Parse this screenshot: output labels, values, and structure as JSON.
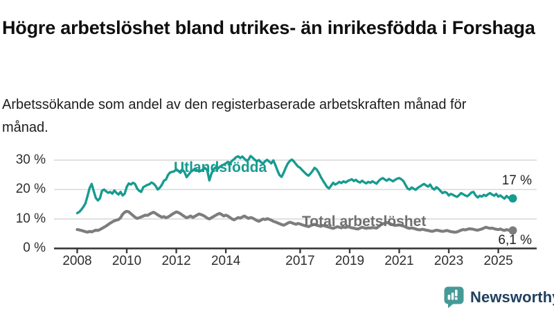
{
  "header": {
    "title": "Högre arbetslöshet bland utrikes- än inrikesfödda i Forshaga",
    "subtitle": "Arbetssökande som andel av den registerbaserade arbetskraften månad för månad."
  },
  "chart_data": {
    "type": "line",
    "title": "Högre arbetslöshet bland utrikes- än inrikesfödda i Forshaga",
    "subtitle": "Arbetssökande som andel av den registerbaserade arbetskraften månad för månad.",
    "unit": "%",
    "x_start": "2008-01",
    "x_end": "2025-08",
    "x_step": "month",
    "xlim": [
      2007.1,
      2026.5
    ],
    "ylim": [
      0,
      33
    ],
    "grid": "horizontal",
    "legend_position": "inline-labels",
    "xtick_years": [
      2008,
      2010,
      2012,
      2014,
      2017,
      2019,
      2021,
      2023,
      2025
    ],
    "xtick_labels": [
      "2008",
      "2010",
      "2012",
      "2014",
      "2017",
      "2019",
      "2021",
      "2023",
      "2025"
    ],
    "yticks": [
      30,
      20,
      10,
      0
    ],
    "ytick_labels": [
      "30 %",
      "20 %",
      "10 %",
      "0 %"
    ],
    "series": [
      {
        "name": "Utlandsfödda",
        "color": "#169b90",
        "end_label": "17 %",
        "end_value": 17.0,
        "values": [
          12.0,
          12.4,
          13.2,
          14.1,
          15.3,
          17.8,
          20.5,
          21.9,
          19.5,
          17.2,
          16.3,
          17.0,
          19.6,
          20.0,
          19.4,
          18.9,
          19.2,
          18.6,
          19.7,
          18.9,
          18.3,
          19.2,
          18.0,
          18.6,
          20.9,
          22.1,
          21.7,
          22.3,
          21.9,
          20.4,
          19.6,
          19.2,
          20.8,
          21.2,
          21.6,
          21.8,
          22.4,
          22.0,
          21.2,
          20.0,
          20.6,
          21.6,
          23.0,
          23.4,
          25.0,
          25.8,
          26.0,
          26.2,
          26.9,
          26.3,
          25.7,
          26.7,
          25.9,
          24.2,
          25.1,
          26.0,
          26.5,
          27.1,
          26.6,
          26.1,
          26.4,
          26.9,
          27.3,
          26.5,
          23.1,
          25.4,
          26.8,
          27.5,
          27.0,
          27.7,
          28.1,
          28.5,
          28.9,
          29.4,
          28.7,
          29.8,
          30.3,
          31.0,
          31.3,
          30.7,
          31.2,
          30.5,
          29.8,
          30.2,
          31.4,
          30.8,
          30.1,
          29.6,
          30.0,
          29.3,
          28.8,
          29.6,
          30.1,
          29.5,
          28.9,
          29.9,
          28.3,
          26.5,
          24.9,
          24.3,
          25.7,
          27.4,
          28.8,
          29.7,
          30.2,
          29.5,
          28.6,
          27.8,
          27.4,
          26.6,
          25.9,
          25.2,
          24.7,
          25.4,
          26.3,
          27.4,
          26.8,
          25.7,
          24.3,
          23.1,
          22.0,
          20.9,
          20.4,
          21.3,
          22.3,
          21.7,
          22.1,
          22.6,
          22.2,
          22.8,
          22.4,
          22.9,
          23.2,
          23.5,
          22.9,
          23.3,
          22.7,
          22.4,
          23.0,
          22.5,
          22.1,
          22.6,
          22.3,
          22.8,
          22.4,
          22.0,
          22.9,
          23.5,
          23.9,
          23.4,
          23.0,
          23.6,
          23.2,
          22.8,
          23.3,
          23.7,
          23.9,
          23.5,
          22.9,
          21.6,
          20.4,
          20.0,
          20.7,
          20.3,
          19.9,
          20.6,
          21.0,
          21.5,
          21.9,
          21.4,
          21.0,
          21.7,
          20.5,
          20.0,
          20.8,
          20.3,
          19.5,
          18.8,
          19.2,
          18.9,
          18.0,
          18.5,
          18.2,
          17.8,
          17.5,
          18.1,
          18.8,
          18.4,
          18.0,
          17.7,
          18.3,
          19.0,
          19.2,
          18.0,
          17.3,
          17.9,
          17.6,
          18.2,
          17.8,
          18.4,
          18.8,
          18.3,
          17.9,
          18.5,
          17.6,
          18.0,
          17.4,
          16.9,
          17.8,
          17.2,
          16.8,
          17.0
        ]
      },
      {
        "name": "Total arbetslöshet",
        "color": "#7d7d7d",
        "end_label": "6,1 %",
        "end_value": 6.1,
        "values": [
          6.4,
          6.3,
          6.1,
          5.9,
          5.7,
          5.5,
          5.8,
          5.6,
          5.9,
          6.2,
          6.1,
          6.4,
          6.8,
          7.2,
          7.6,
          8.1,
          8.6,
          9.0,
          9.4,
          9.6,
          9.8,
          10.4,
          11.6,
          12.3,
          12.6,
          12.4,
          11.8,
          11.2,
          10.6,
          10.2,
          10.4,
          10.7,
          11.0,
          11.3,
          11.2,
          11.6,
          12.0,
          12.3,
          11.9,
          11.4,
          11.0,
          10.6,
          10.8,
          10.4,
          10.7,
          11.1,
          11.6,
          12.0,
          12.4,
          12.2,
          11.8,
          11.3,
          10.8,
          10.4,
          10.7,
          11.0,
          10.5,
          10.9,
          11.3,
          11.7,
          11.5,
          11.2,
          10.8,
          10.3,
          10.0,
          10.4,
          10.8,
          11.2,
          11.6,
          11.9,
          11.5,
          11.0,
          11.3,
          11.0,
          10.5,
          10.0,
          9.7,
          10.1,
          10.5,
          10.3,
          10.7,
          11.0,
          10.6,
          10.2,
          10.5,
          10.3,
          9.9,
          9.5,
          9.2,
          9.6,
          10.0,
          9.8,
          10.1,
          9.9,
          9.6,
          9.2,
          9.0,
          8.7,
          8.4,
          8.1,
          7.9,
          8.2,
          8.6,
          8.9,
          8.7,
          8.4,
          8.2,
          8.5,
          8.3,
          8.0,
          7.8,
          7.6,
          7.4,
          7.7,
          8.0,
          8.2,
          7.9,
          7.7,
          7.5,
          7.8,
          7.6,
          7.4,
          7.2,
          7.0,
          6.8,
          7.1,
          7.4,
          7.2,
          7.0,
          7.3,
          7.1,
          7.4,
          7.2,
          7.0,
          6.9,
          6.7,
          6.6,
          6.9,
          7.2,
          7.0,
          6.8,
          7.0,
          6.9,
          7.1,
          7.0,
          6.9,
          7.4,
          8.0,
          8.3,
          8.6,
          8.8,
          8.6,
          8.3,
          8.0,
          7.8,
          7.9,
          8.0,
          7.8,
          7.6,
          7.3,
          7.0,
          6.8,
          7.0,
          6.8,
          6.6,
          6.4,
          6.3,
          6.5,
          6.4,
          6.2,
          6.1,
          5.9,
          5.8,
          6.0,
          6.2,
          6.1,
          5.9,
          5.8,
          5.9,
          6.1,
          5.9,
          5.7,
          5.6,
          5.5,
          5.6,
          5.9,
          6.2,
          6.4,
          6.3,
          6.5,
          6.7,
          6.6,
          6.5,
          6.3,
          6.2,
          6.4,
          6.6,
          6.9,
          7.2,
          7.0,
          6.8,
          6.9,
          6.7,
          6.5,
          6.4,
          6.6,
          6.3,
          6.1,
          6.4,
          6.2,
          6.0,
          6.1
        ]
      }
    ],
    "colors": {
      "gridline": "#d9d9d9",
      "axis": "#3a3a3a",
      "accent_teal": "#169b90",
      "accent_gray": "#7d7d7d"
    }
  },
  "footer": {
    "brand": "Newsworthy",
    "logo_color": "#459a97",
    "text_color": "#21405e"
  }
}
